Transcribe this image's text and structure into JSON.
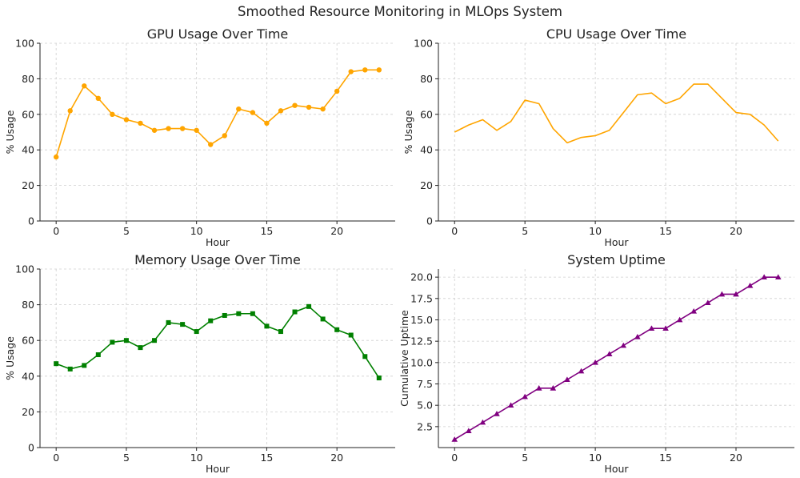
{
  "figure": {
    "title": "Smoothed Resource Monitoring in MLOps System"
  },
  "chart_data": [
    {
      "type": "line",
      "title": "GPU Usage Over Time",
      "xlabel": "Hour",
      "ylabel": "% Usage",
      "xlim": [
        -1.15,
        24.15
      ],
      "ylim": [
        0,
        100
      ],
      "xticks": [
        0,
        5,
        10,
        15,
        20
      ],
      "yticks": [
        0,
        20,
        40,
        60,
        80,
        100
      ],
      "ytick_labels": [
        "0",
        "20",
        "40",
        "60",
        "80",
        "100"
      ],
      "grid": true,
      "series": [
        {
          "color": "#ffa500",
          "marker": "circle",
          "x": [
            0,
            1,
            2,
            3,
            4,
            5,
            6,
            7,
            8,
            9,
            10,
            11,
            12,
            13,
            14,
            15,
            16,
            17,
            18,
            19,
            20,
            21,
            22,
            23
          ],
          "values": [
            36,
            62,
            76,
            69,
            60,
            57,
            55,
            51,
            52,
            52,
            51,
            43,
            48,
            63,
            61,
            55,
            62,
            65,
            64,
            63,
            73,
            84,
            85,
            85
          ]
        }
      ]
    },
    {
      "type": "line",
      "title": "CPU Usage Over Time",
      "xlabel": "Hour",
      "ylabel": "% Usage",
      "xlim": [
        -1.15,
        24.15
      ],
      "ylim": [
        0,
        100
      ],
      "xticks": [
        0,
        5,
        10,
        15,
        20
      ],
      "yticks": [
        0,
        20,
        40,
        60,
        80,
        100
      ],
      "ytick_labels": [
        "0",
        "20",
        "40",
        "60",
        "80",
        "100"
      ],
      "grid": true,
      "series": [
        {
          "color": "#ffa500",
          "marker": "none",
          "x": [
            0,
            1,
            2,
            3,
            4,
            5,
            6,
            7,
            8,
            9,
            10,
            11,
            12,
            13,
            14,
            15,
            16,
            17,
            18,
            19,
            20,
            21,
            22,
            23
          ],
          "values": [
            50,
            54,
            57,
            51,
            56,
            68,
            66,
            52,
            44,
            47,
            48,
            51,
            61,
            71,
            72,
            66,
            69,
            77,
            77,
            69,
            61,
            60,
            54,
            45
          ]
        }
      ]
    },
    {
      "type": "line",
      "title": "Memory Usage Over Time",
      "xlabel": "Hour",
      "ylabel": "% Usage",
      "xlim": [
        -1.15,
        24.15
      ],
      "ylim": [
        0,
        100
      ],
      "xticks": [
        0,
        5,
        10,
        15,
        20
      ],
      "yticks": [
        0,
        20,
        40,
        60,
        80,
        100
      ],
      "ytick_labels": [
        "0",
        "20",
        "40",
        "60",
        "80",
        "100"
      ],
      "grid": true,
      "series": [
        {
          "color": "#008000",
          "marker": "square",
          "x": [
            0,
            1,
            2,
            3,
            4,
            5,
            6,
            7,
            8,
            9,
            10,
            11,
            12,
            13,
            14,
            15,
            16,
            17,
            18,
            19,
            20,
            21,
            22,
            23
          ],
          "values": [
            47,
            44,
            46,
            52,
            59,
            60,
            56,
            60,
            70,
            69,
            65,
            71,
            74,
            75,
            75,
            68,
            65,
            76,
            79,
            72,
            66,
            63,
            51,
            39
          ]
        }
      ]
    },
    {
      "type": "line",
      "title": "System Uptime",
      "xlabel": "Hour",
      "ylabel": "Cumulative Uptime",
      "xlim": [
        -1.15,
        24.15
      ],
      "ylim": [
        0.05,
        20.95
      ],
      "xticks": [
        0,
        5,
        10,
        15,
        20
      ],
      "yticks": [
        2.5,
        5.0,
        7.5,
        10.0,
        12.5,
        15.0,
        17.5,
        20.0
      ],
      "ytick_labels": [
        "2.5",
        "5.0",
        "7.5",
        "10.0",
        "12.5",
        "15.0",
        "17.5",
        "20.0"
      ],
      "grid": true,
      "series": [
        {
          "color": "#800080",
          "marker": "triangle",
          "x": [
            0,
            1,
            2,
            3,
            4,
            5,
            6,
            7,
            8,
            9,
            10,
            11,
            12,
            13,
            14,
            15,
            16,
            17,
            18,
            19,
            20,
            21,
            22,
            23
          ],
          "values": [
            1,
            2,
            3,
            4,
            5,
            6,
            7,
            7,
            8,
            9,
            10,
            11,
            12,
            13,
            14,
            14,
            15,
            16,
            17,
            18,
            18,
            19,
            20,
            20
          ]
        }
      ]
    }
  ]
}
